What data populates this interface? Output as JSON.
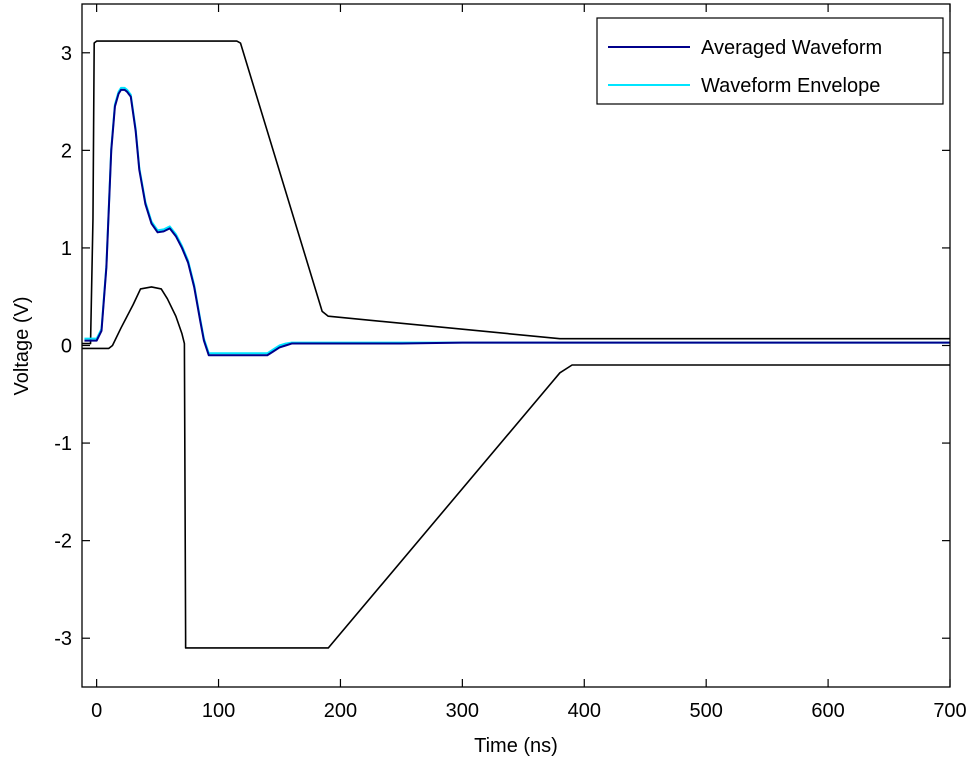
{
  "chart_data": {
    "type": "line",
    "title": "",
    "xlabel": "Time (ns)",
    "ylabel": "Voltage (V)",
    "xlim": [
      -12,
      700
    ],
    "ylim": [
      -3.5,
      3.5
    ],
    "xticks": [
      0,
      100,
      200,
      300,
      400,
      500,
      600,
      700
    ],
    "yticks": [
      -3,
      -2,
      -1,
      0,
      1,
      2,
      3
    ],
    "xtick_labels": [
      "0",
      "100",
      "200",
      "300",
      "400",
      "500",
      "600",
      "700"
    ],
    "ytick_labels": [
      "-3",
      "-2",
      "-1",
      "0",
      "1",
      "2",
      "3"
    ],
    "grid": false,
    "legend_position": "top-right",
    "series": [
      {
        "name": "Averaged Waveform",
        "color": "#00008b",
        "x": [
          -10,
          0,
          4,
          8,
          12,
          15,
          18,
          20,
          23,
          25,
          28,
          32,
          35,
          40,
          45,
          50,
          55,
          60,
          65,
          70,
          75,
          80,
          85,
          88,
          92,
          100,
          120,
          140,
          145,
          150,
          155,
          160,
          180,
          200,
          250,
          300,
          350,
          400,
          450,
          500,
          550,
          600,
          650,
          700
        ],
        "y": [
          0.05,
          0.05,
          0.15,
          0.8,
          2.0,
          2.45,
          2.58,
          2.62,
          2.62,
          2.6,
          2.55,
          2.2,
          1.8,
          1.45,
          1.25,
          1.16,
          1.17,
          1.2,
          1.12,
          1.0,
          0.85,
          0.6,
          0.25,
          0.05,
          -0.1,
          -0.1,
          -0.1,
          -0.1,
          -0.06,
          -0.02,
          0.0,
          0.02,
          0.02,
          0.02,
          0.02,
          0.03,
          0.03,
          0.03,
          0.03,
          0.03,
          0.03,
          0.03,
          0.03,
          0.03
        ]
      },
      {
        "name": "Waveform Envelope",
        "color": "#00e5ff",
        "x": [
          -10,
          0,
          4,
          8,
          12,
          15,
          18,
          20,
          23,
          25,
          28,
          32,
          35,
          40,
          45,
          50,
          55,
          60,
          65,
          70,
          75,
          80,
          85,
          88,
          92,
          100,
          120,
          140,
          145,
          150,
          155,
          160,
          180,
          200,
          250,
          300,
          350,
          400,
          450,
          500,
          550,
          600,
          650,
          700
        ],
        "y": [
          0.07,
          0.07,
          0.17,
          0.82,
          2.02,
          2.47,
          2.6,
          2.64,
          2.64,
          2.62,
          2.57,
          2.22,
          1.82,
          1.47,
          1.27,
          1.18,
          1.19,
          1.22,
          1.14,
          1.02,
          0.87,
          0.62,
          0.27,
          0.07,
          -0.08,
          -0.08,
          -0.08,
          -0.08,
          -0.04,
          0.0,
          0.02,
          0.03,
          0.03,
          0.03,
          0.03,
          0.03,
          0.03,
          0.03,
          0.03,
          0.03,
          0.03,
          0.03,
          0.03,
          0.03
        ]
      },
      {
        "color": "#000000",
        "x": [
          -12,
          -5,
          -3,
          -2,
          0,
          115,
          118,
          185,
          190,
          380,
          700
        ],
        "y": [
          0.02,
          0.02,
          1.3,
          3.1,
          3.12,
          3.12,
          3.1,
          0.35,
          0.3,
          0.07,
          0.07
        ]
      },
      {
        "color": "#000000",
        "x": [
          -12,
          10,
          13,
          20,
          30,
          36,
          45,
          53,
          58,
          65,
          70,
          72,
          73,
          73,
          190,
          380,
          390,
          700
        ],
        "y": [
          -0.03,
          -0.03,
          0.0,
          0.18,
          0.42,
          0.58,
          0.6,
          0.58,
          0.48,
          0.3,
          0.12,
          0.02,
          -3.0,
          -3.1,
          -3.1,
          -0.28,
          -0.2,
          -0.2
        ]
      }
    ]
  }
}
